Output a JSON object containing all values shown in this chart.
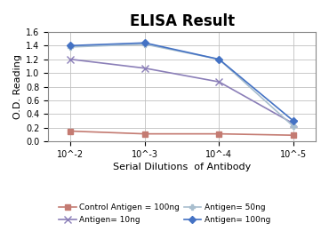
{
  "title": "ELISA Result",
  "xlabel": "Serial Dilutions  of Antibody",
  "ylabel": "O.D. Reading",
  "x_values": [
    0.01,
    0.001,
    0.0001,
    1e-05
  ],
  "x_tick_labels": [
    "10^-2",
    "10^-3",
    "10^-4",
    "10^-5"
  ],
  "ylim": [
    0,
    1.6
  ],
  "yticks": [
    0.0,
    0.2,
    0.4,
    0.6,
    0.8,
    1.0,
    1.2,
    1.4,
    1.6
  ],
  "series": [
    {
      "label": "Control Antigen = 100ng",
      "color": "#c47b72",
      "marker": "s",
      "markersize": 4,
      "linewidth": 1.2,
      "y_values": [
        0.15,
        0.11,
        0.11,
        0.09
      ]
    },
    {
      "label": "Antigen= 10ng",
      "color": "#8b7fb8",
      "marker": "x",
      "markersize": 6,
      "linewidth": 1.2,
      "y_values": [
        1.2,
        1.07,
        0.87,
        0.26
      ]
    },
    {
      "label": "Antigen= 50ng",
      "color": "#a8bece",
      "marker": "P",
      "markersize": 5,
      "linewidth": 1.2,
      "y_values": [
        1.38,
        1.42,
        1.2,
        0.22
      ]
    },
    {
      "label": "Antigen= 100ng",
      "color": "#4472c4",
      "marker": "D",
      "markersize": 4,
      "linewidth": 1.2,
      "y_values": [
        1.4,
        1.44,
        1.2,
        0.3
      ]
    }
  ],
  "background_color": "#ffffff",
  "grid_color": "#c0c0c0",
  "title_fontsize": 12,
  "label_fontsize": 8,
  "tick_fontsize": 7,
  "legend_fontsize": 6.5
}
